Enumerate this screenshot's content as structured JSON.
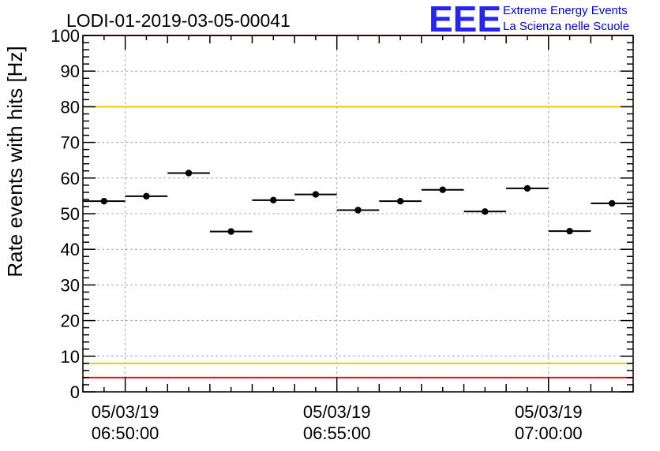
{
  "chart_data": {
    "type": "scatter",
    "title": "LODI-01-2019-03-05-00041",
    "xlabel": "",
    "ylabel": "Rate events with hits [Hz]",
    "x_unit": "time",
    "x_range": [
      "06:49:00",
      "07:02:00"
    ],
    "ylim": [
      0,
      100
    ],
    "y_ticks": [
      "0",
      "10",
      "20",
      "30",
      "40",
      "50",
      "60",
      "70",
      "80",
      "90",
      "100"
    ],
    "x_ticks": [
      {
        "time": "06:50:00",
        "date": "05/03/19"
      },
      {
        "time": "06:55:00",
        "date": "05/03/19"
      },
      {
        "time": "07:00:00",
        "date": "05/03/19"
      }
    ],
    "grid": true,
    "bin_width_minutes": 1,
    "points": [
      {
        "t": "06:49:30",
        "y": 53.5
      },
      {
        "t": "06:50:30",
        "y": 54.9
      },
      {
        "t": "06:51:30",
        "y": 61.4
      },
      {
        "t": "06:52:30",
        "y": 45.0
      },
      {
        "t": "06:53:30",
        "y": 53.8
      },
      {
        "t": "06:54:30",
        "y": 55.4
      },
      {
        "t": "06:55:30",
        "y": 51.0
      },
      {
        "t": "06:56:30",
        "y": 53.5
      },
      {
        "t": "06:57:30",
        "y": 56.7
      },
      {
        "t": "06:58:30",
        "y": 50.6
      },
      {
        "t": "06:59:30",
        "y": 57.1
      },
      {
        "t": "07:00:30",
        "y": 45.1
      },
      {
        "t": "07:01:30",
        "y": 52.9
      }
    ],
    "reference_lines": [
      {
        "y": 100,
        "color": "#ff0000"
      },
      {
        "y": 80,
        "color": "#f0c800"
      },
      {
        "y": 8,
        "color": "#f0c800"
      },
      {
        "y": 4,
        "color": "#ff0000"
      }
    ]
  },
  "logo": {
    "letters": "EEE",
    "line1": "Extreme Energy Events",
    "line2": "La Scienza nelle Scuole",
    "color": "#0000ee"
  }
}
